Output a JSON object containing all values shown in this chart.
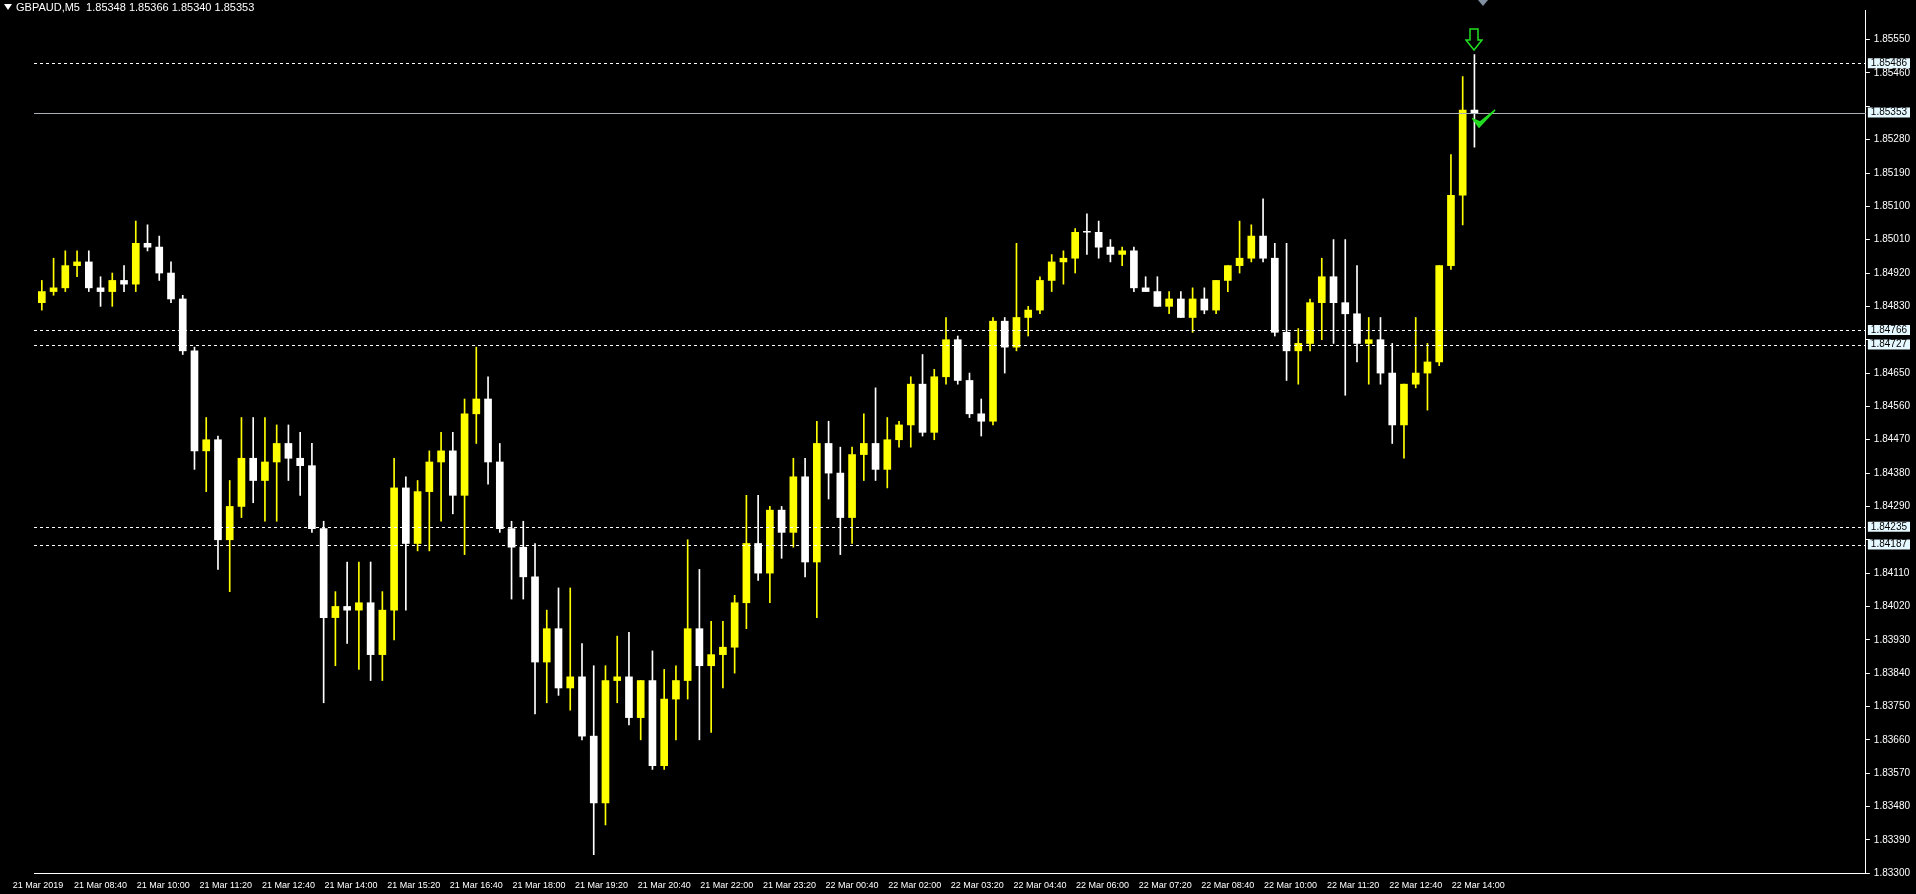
{
  "chart_data": {
    "type": "candlestick",
    "title": "GBPAUD,M5  1.85348 1.85366 1.85340 1.85353",
    "x": [
      "2019-03-21T07:25",
      "2019-03-21T07:40",
      "2019-03-21T07:55",
      "2019-03-21T08:10",
      "2019-03-21T08:25",
      "2019-03-21T08:40",
      "2019-03-21T08:55",
      "2019-03-21T09:10",
      "2019-03-21T09:25",
      "2019-03-21T09:40",
      "2019-03-21T09:55",
      "2019-03-21T10:10",
      "2019-03-21T10:25",
      "2019-03-21T10:40",
      "2019-03-21T10:55",
      "2019-03-21T11:10",
      "2019-03-21T11:25",
      "2019-03-21T11:40",
      "2019-03-21T11:55",
      "2019-03-21T12:10",
      "2019-03-21T12:25",
      "2019-03-21T12:40",
      "2019-03-21T12:55",
      "2019-03-21T13:10",
      "2019-03-21T13:25",
      "2019-03-21T13:40",
      "2019-03-21T13:55",
      "2019-03-21T14:10",
      "2019-03-21T14:25",
      "2019-03-21T14:40",
      "2019-03-21T14:55",
      "2019-03-21T15:10",
      "2019-03-21T15:25",
      "2019-03-21T15:40",
      "2019-03-21T15:55",
      "2019-03-21T16:10",
      "2019-03-21T16:25",
      "2019-03-21T16:40",
      "2019-03-21T16:55",
      "2019-03-21T17:10",
      "2019-03-21T17:25",
      "2019-03-21T17:40",
      "2019-03-21T17:55",
      "2019-03-21T18:10",
      "2019-03-21T18:25",
      "2019-03-21T18:40",
      "2019-03-21T18:55",
      "2019-03-21T19:10",
      "2019-03-21T19:25",
      "2019-03-21T19:40",
      "2019-03-21T19:55",
      "2019-03-21T20:10",
      "2019-03-21T20:25",
      "2019-03-21T20:40",
      "2019-03-21T20:55",
      "2019-03-21T21:10",
      "2019-03-21T21:25",
      "2019-03-21T21:40",
      "2019-03-21T21:55",
      "2019-03-21T22:10",
      "2019-03-21T22:25",
      "2019-03-21T22:40",
      "2019-03-21T22:55",
      "2019-03-21T23:10",
      "2019-03-21T23:25",
      "2019-03-21T23:40",
      "2019-03-21T23:55",
      "2019-03-22T00:10",
      "2019-03-22T00:25",
      "2019-03-22T00:40",
      "2019-03-22T00:55",
      "2019-03-22T01:10",
      "2019-03-22T01:25",
      "2019-03-22T01:40",
      "2019-03-22T01:55",
      "2019-03-22T02:10",
      "2019-03-22T02:25",
      "2019-03-22T02:40",
      "2019-03-22T02:55",
      "2019-03-22T03:10",
      "2019-03-22T03:25",
      "2019-03-22T03:40",
      "2019-03-22T03:55",
      "2019-03-22T04:10",
      "2019-03-22T04:25",
      "2019-03-22T04:40",
      "2019-03-22T04:55",
      "2019-03-22T05:10",
      "2019-03-22T05:25",
      "2019-03-22T05:40",
      "2019-03-22T05:55",
      "2019-03-22T06:10",
      "2019-03-22T06:25",
      "2019-03-22T06:40",
      "2019-03-22T06:55",
      "2019-03-22T07:10",
      "2019-03-22T07:25",
      "2019-03-22T07:40",
      "2019-03-22T07:55",
      "2019-03-22T08:10",
      "2019-03-22T08:25",
      "2019-03-22T08:40",
      "2019-03-22T08:55",
      "2019-03-22T09:10",
      "2019-03-22T09:25",
      "2019-03-22T09:40",
      "2019-03-22T09:55",
      "2019-03-22T10:10",
      "2019-03-22T10:25",
      "2019-03-22T10:40",
      "2019-03-22T10:55",
      "2019-03-22T11:10",
      "2019-03-22T11:25",
      "2019-03-22T11:40",
      "2019-03-22T11:55",
      "2019-03-22T12:10",
      "2019-03-22T12:25",
      "2019-03-22T12:40",
      "2019-03-22T12:55",
      "2019-03-22T13:10",
      "2019-03-22T13:25",
      "2019-03-22T13:40",
      "2019-03-22T13:55"
    ],
    "ohlc": [
      [
        1.8484,
        1.849,
        1.8482,
        1.8487
      ],
      [
        1.8487,
        1.8496,
        1.8486,
        1.8488
      ],
      [
        1.8488,
        1.8498,
        1.8487,
        1.8494
      ],
      [
        1.8494,
        1.8498,
        1.8491,
        1.8495
      ],
      [
        1.8495,
        1.8498,
        1.8487,
        1.8488
      ],
      [
        1.8488,
        1.8491,
        1.8483,
        1.8487
      ],
      [
        1.8487,
        1.8492,
        1.8483,
        1.849
      ],
      [
        1.849,
        1.8494,
        1.8487,
        1.8489
      ],
      [
        1.8489,
        1.8506,
        1.8487,
        1.85
      ],
      [
        1.85,
        1.8505,
        1.8498,
        1.8499
      ],
      [
        1.8499,
        1.8502,
        1.849,
        1.8492
      ],
      [
        1.8492,
        1.8495,
        1.8484,
        1.8485
      ],
      [
        1.8485,
        1.8486,
        1.847,
        1.8471
      ],
      [
        1.8471,
        1.8472,
        1.8439,
        1.8444
      ],
      [
        1.8444,
        1.8453,
        1.8433,
        1.8447
      ],
      [
        1.8447,
        1.8448,
        1.8412,
        1.842
      ],
      [
        1.842,
        1.8436,
        1.8406,
        1.8429
      ],
      [
        1.8429,
        1.8453,
        1.8426,
        1.8442
      ],
      [
        1.8442,
        1.8453,
        1.843,
        1.8436
      ],
      [
        1.8436,
        1.8453,
        1.8425,
        1.8441
      ],
      [
        1.8441,
        1.8451,
        1.8425,
        1.8446
      ],
      [
        1.8446,
        1.8451,
        1.8436,
        1.8442
      ],
      [
        1.8442,
        1.8449,
        1.8432,
        1.844
      ],
      [
        1.844,
        1.8446,
        1.8422,
        1.8423
      ],
      [
        1.8423,
        1.8425,
        1.8376,
        1.8399
      ],
      [
        1.8399,
        1.8406,
        1.8386,
        1.8402
      ],
      [
        1.8402,
        1.8414,
        1.8392,
        1.8401
      ],
      [
        1.8401,
        1.8414,
        1.8385,
        1.8403
      ],
      [
        1.8403,
        1.8414,
        1.8382,
        1.8389
      ],
      [
        1.8389,
        1.8406,
        1.8382,
        1.8401
      ],
      [
        1.8401,
        1.8442,
        1.8393,
        1.8434
      ],
      [
        1.8434,
        1.8437,
        1.8401,
        1.8419
      ],
      [
        1.8419,
        1.8436,
        1.8417,
        1.8433
      ],
      [
        1.8433,
        1.8444,
        1.8417,
        1.8441
      ],
      [
        1.8441,
        1.8449,
        1.8425,
        1.8444
      ],
      [
        1.8444,
        1.8449,
        1.8427,
        1.8432
      ],
      [
        1.8432,
        1.8458,
        1.8416,
        1.8454
      ],
      [
        1.8454,
        1.8472,
        1.8446,
        1.8458
      ],
      [
        1.8458,
        1.8464,
        1.8435,
        1.8441
      ],
      [
        1.8441,
        1.8446,
        1.8422,
        1.8423
      ],
      [
        1.8423,
        1.8425,
        1.8404,
        1.8418
      ],
      [
        1.8418,
        1.8425,
        1.8404,
        1.841
      ],
      [
        1.841,
        1.8419,
        1.8373,
        1.8387
      ],
      [
        1.8387,
        1.8401,
        1.8376,
        1.8396
      ],
      [
        1.8396,
        1.8407,
        1.8378,
        1.838
      ],
      [
        1.838,
        1.8407,
        1.8374,
        1.8383
      ],
      [
        1.8383,
        1.8392,
        1.8366,
        1.8367
      ],
      [
        1.8367,
        1.8386,
        1.8335,
        1.8349
      ],
      [
        1.8349,
        1.8386,
        1.8343,
        1.8382
      ],
      [
        1.8382,
        1.8394,
        1.8376,
        1.8383
      ],
      [
        1.8383,
        1.8395,
        1.837,
        1.8372
      ],
      [
        1.8372,
        1.8382,
        1.8366,
        1.8382
      ],
      [
        1.8382,
        1.839,
        1.8358,
        1.8359
      ],
      [
        1.8359,
        1.8385,
        1.8358,
        1.8377
      ],
      [
        1.8377,
        1.8386,
        1.8366,
        1.8382
      ],
      [
        1.8382,
        1.842,
        1.8377,
        1.8396
      ],
      [
        1.8396,
        1.8412,
        1.8366,
        1.8386
      ],
      [
        1.8386,
        1.8398,
        1.8368,
        1.8389
      ],
      [
        1.8389,
        1.8398,
        1.838,
        1.8391
      ],
      [
        1.8391,
        1.8405,
        1.8384,
        1.8403
      ],
      [
        1.8403,
        1.8432,
        1.8396,
        1.8419
      ],
      [
        1.8419,
        1.8432,
        1.8409,
        1.8411
      ],
      [
        1.8411,
        1.8429,
        1.8403,
        1.8428
      ],
      [
        1.8428,
        1.8429,
        1.8415,
        1.8422
      ],
      [
        1.8422,
        1.8442,
        1.8418,
        1.8437
      ],
      [
        1.8437,
        1.8442,
        1.841,
        1.8414
      ],
      [
        1.8414,
        1.8452,
        1.8399,
        1.8446
      ],
      [
        1.8446,
        1.8452,
        1.8431,
        1.8438
      ],
      [
        1.8438,
        1.8445,
        1.8416,
        1.8426
      ],
      [
        1.8426,
        1.8445,
        1.8419,
        1.8443
      ],
      [
        1.8443,
        1.8454,
        1.8436,
        1.8446
      ],
      [
        1.8446,
        1.8461,
        1.8436,
        1.8439
      ],
      [
        1.8439,
        1.8453,
        1.8434,
        1.8447
      ],
      [
        1.8447,
        1.8452,
        1.8445,
        1.8451
      ],
      [
        1.8451,
        1.8464,
        1.8445,
        1.8462
      ],
      [
        1.8462,
        1.847,
        1.8448,
        1.8449
      ],
      [
        1.8449,
        1.8466,
        1.8447,
        1.8464
      ],
      [
        1.8464,
        1.848,
        1.8462,
        1.8474
      ],
      [
        1.8474,
        1.8475,
        1.8462,
        1.8463
      ],
      [
        1.8463,
        1.8465,
        1.8453,
        1.8454
      ],
      [
        1.8454,
        1.8458,
        1.8448,
        1.8452
      ],
      [
        1.8452,
        1.848,
        1.8451,
        1.8479
      ],
      [
        1.8479,
        1.848,
        1.8465,
        1.8472
      ],
      [
        1.8472,
        1.85,
        1.8471,
        1.848
      ],
      [
        1.848,
        1.8483,
        1.8475,
        1.8482
      ],
      [
        1.8482,
        1.8491,
        1.8481,
        1.849
      ],
      [
        1.849,
        1.8497,
        1.8487,
        1.8495
      ],
      [
        1.8495,
        1.8498,
        1.8489,
        1.8496
      ],
      [
        1.8496,
        1.8504,
        1.8492,
        1.8503
      ],
      [
        1.8503,
        1.8508,
        1.8497,
        1.8503
      ],
      [
        1.8503,
        1.8506,
        1.8496,
        1.8499
      ],
      [
        1.8499,
        1.8501,
        1.8495,
        1.8497
      ],
      [
        1.8497,
        1.8499,
        1.8494,
        1.8498
      ],
      [
        1.8498,
        1.8499,
        1.8487,
        1.8488
      ],
      [
        1.8488,
        1.8491,
        1.8487,
        1.8487
      ],
      [
        1.8487,
        1.8491,
        1.8483,
        1.8483
      ],
      [
        1.8483,
        1.8487,
        1.8481,
        1.8485
      ],
      [
        1.8485,
        1.8487,
        1.848,
        1.848
      ],
      [
        1.848,
        1.8488,
        1.8476,
        1.8485
      ],
      [
        1.8485,
        1.8488,
        1.8481,
        1.8482
      ],
      [
        1.8482,
        1.849,
        1.8481,
        1.849
      ],
      [
        1.849,
        1.8494,
        1.8487,
        1.8494
      ],
      [
        1.8494,
        1.8506,
        1.8492,
        1.8496
      ],
      [
        1.8496,
        1.8505,
        1.8495,
        1.8502
      ],
      [
        1.8502,
        1.8512,
        1.8495,
        1.8496
      ],
      [
        1.8496,
        1.85,
        1.8475,
        1.8476
      ],
      [
        1.8476,
        1.85,
        1.8463,
        1.8471
      ],
      [
        1.8471,
        1.8477,
        1.8462,
        1.8473
      ],
      [
        1.8473,
        1.8485,
        1.8471,
        1.8484
      ],
      [
        1.8484,
        1.8496,
        1.8474,
        1.8491
      ],
      [
        1.8491,
        1.8501,
        1.8473,
        1.8484
      ],
      [
        1.8484,
        1.8501,
        1.8459,
        1.8481
      ],
      [
        1.8481,
        1.8494,
        1.8468,
        1.8473
      ],
      [
        1.8473,
        1.848,
        1.8462,
        1.8474
      ],
      [
        1.8474,
        1.848,
        1.8462,
        1.8465
      ],
      [
        1.8465,
        1.8473,
        1.8446,
        1.8451
      ],
      [
        1.8451,
        1.8462,
        1.8442,
        1.8462
      ],
      [
        1.8462,
        1.848,
        1.8461,
        1.8465
      ],
      [
        1.8465,
        1.8473,
        1.8455,
        1.8468
      ],
      [
        1.8468,
        1.8494,
        1.8467,
        1.8494
      ],
      [
        1.8494,
        1.8524,
        1.8493,
        1.8513
      ],
      [
        1.8513,
        1.8545,
        1.8505,
        1.8536
      ],
      [
        1.8536,
        1.8551,
        1.8526,
        1.8535
      ]
    ],
    "colors": [
      "#ffff00",
      "#ffff00",
      "#ffff00",
      "#ffff00",
      "#ffffff",
      "#ffffff",
      "#ffff00",
      "#ffffff",
      "#ffff00",
      "#ffffff",
      "#ffffff",
      "#ffffff",
      "#ffffff",
      "#ffffff",
      "#ffff00",
      "#ffffff",
      "#ffff00",
      "#ffff00",
      "#ffffff",
      "#ffff00",
      "#ffff00",
      "#ffffff",
      "#ffffff",
      "#ffffff",
      "#ffffff",
      "#ffff00",
      "#ffffff",
      "#ffff00",
      "#ffffff",
      "#ffff00",
      "#ffff00",
      "#ffffff",
      "#ffff00",
      "#ffff00",
      "#ffff00",
      "#ffffff",
      "#ffff00",
      "#ffff00",
      "#ffffff",
      "#ffffff",
      "#ffffff",
      "#ffffff",
      "#ffffff",
      "#ffff00",
      "#ffffff",
      "#ffff00",
      "#ffffff",
      "#ffffff",
      "#ffff00",
      "#ffff00",
      "#ffffff",
      "#ffff00",
      "#ffffff",
      "#ffff00",
      "#ffff00",
      "#ffff00",
      "#ffffff",
      "#ffff00",
      "#ffff00",
      "#ffff00",
      "#ffff00",
      "#ffffff",
      "#ffff00",
      "#ffffff",
      "#ffff00",
      "#ffffff",
      "#ffff00",
      "#ffffff",
      "#ffffff",
      "#ffff00",
      "#ffff00",
      "#ffffff",
      "#ffff00",
      "#ffff00",
      "#ffff00",
      "#ffffff",
      "#ffff00",
      "#ffff00",
      "#ffffff",
      "#ffffff",
      "#ffffff",
      "#ffff00",
      "#ffffff",
      "#ffff00",
      "#ffff00",
      "#ffff00",
      "#ffff00",
      "#ffff00",
      "#ffff00",
      "#ffffff",
      "#ffffff",
      "#ffffff",
      "#ffff00",
      "#ffffff",
      "#ffffff",
      "#ffffff",
      "#ffff00",
      "#ffffff",
      "#ffff00",
      "#ffffff",
      "#ffff00",
      "#ffff00",
      "#ffff00",
      "#ffff00",
      "#ffffff",
      "#ffffff",
      "#ffffff",
      "#ffff00",
      "#ffff00",
      "#ffff00",
      "#ffffff",
      "#ffffff",
      "#ffffff",
      "#ffff00",
      "#ffffff",
      "#ffffff",
      "#ffff00",
      "#ffff00",
      "#ffff00",
      "#ffff00",
      "#ffff00",
      "#ffff00",
      "#ffffff"
    ],
    "xlim": [
      "2019-03-21T07:15",
      "2019-03-22T22:15"
    ],
    "xticks": [
      {
        "value": "2019-03-21T07:20",
        "label": "21 Mar 2019"
      },
      {
        "value": "2019-03-21T08:40",
        "label": "21 Mar 08:40"
      },
      {
        "value": "2019-03-21T10:00",
        "label": "21 Mar 10:00"
      },
      {
        "value": "2019-03-21T11:20",
        "label": "21 Mar 11:20"
      },
      {
        "value": "2019-03-21T12:40",
        "label": "21 Mar 12:40"
      },
      {
        "value": "2019-03-21T14:00",
        "label": "21 Mar 14:00"
      },
      {
        "value": "2019-03-21T15:20",
        "label": "21 Mar 15:20"
      },
      {
        "value": "2019-03-21T16:40",
        "label": "21 Mar 16:40"
      },
      {
        "value": "2019-03-21T18:00",
        "label": "21 Mar 18:00"
      },
      {
        "value": "2019-03-21T19:20",
        "label": "21 Mar 19:20"
      },
      {
        "value": "2019-03-21T20:40",
        "label": "21 Mar 20:40"
      },
      {
        "value": "2019-03-21T22:00",
        "label": "21 Mar 22:00"
      },
      {
        "value": "2019-03-21T23:20",
        "label": "21 Mar 23:20"
      },
      {
        "value": "2019-03-22T00:40",
        "label": "22 Mar 00:40"
      },
      {
        "value": "2019-03-22T02:00",
        "label": "22 Mar 02:00"
      },
      {
        "value": "2019-03-22T03:20",
        "label": "22 Mar 03:20"
      },
      {
        "value": "2019-03-22T04:40",
        "label": "22 Mar 04:40"
      },
      {
        "value": "2019-03-22T06:00",
        "label": "22 Mar 06:00"
      },
      {
        "value": "2019-03-22T07:20",
        "label": "22 Mar 07:20"
      },
      {
        "value": "2019-03-22T08:40",
        "label": "22 Mar 08:40"
      },
      {
        "value": "2019-03-22T10:00",
        "label": "22 Mar 10:00"
      },
      {
        "value": "2019-03-22T11:20",
        "label": "22 Mar 11:20"
      },
      {
        "value": "2019-03-22T12:40",
        "label": "22 Mar 12:40"
      },
      {
        "value": "2019-03-22T14:00",
        "label": "22 Mar 14:00"
      }
    ],
    "ylim": [
      1.833,
      1.8563
    ],
    "yticks": [
      {
        "value": 1.8555,
        "label": "1.85550"
      },
      {
        "value": 1.8546,
        "label": "1.85460"
      },
      {
        "value": 1.8537,
        "label": null
      },
      {
        "value": 1.8528,
        "label": "1.85280"
      },
      {
        "value": 1.8519,
        "label": "1.85190"
      },
      {
        "value": 1.851,
        "label": "1.85100"
      },
      {
        "value": 1.8501,
        "label": "1.85010"
      },
      {
        "value": 1.8492,
        "label": "1.84920"
      },
      {
        "value": 1.8483,
        "label": "1.84830"
      },
      {
        "value": 1.8474,
        "label": null
      },
      {
        "value": 1.8465,
        "label": "1.84650"
      },
      {
        "value": 1.8456,
        "label": "1.84560"
      },
      {
        "value": 1.8447,
        "label": "1.84470"
      },
      {
        "value": 1.8438,
        "label": "1.84380"
      },
      {
        "value": 1.8429,
        "label": "1.84290"
      },
      {
        "value": 1.842,
        "label": null
      },
      {
        "value": 1.8411,
        "label": "1.84110"
      },
      {
        "value": 1.8402,
        "label": "1.84020"
      },
      {
        "value": 1.8393,
        "label": "1.83930"
      },
      {
        "value": 1.8384,
        "label": "1.83840"
      },
      {
        "value": 1.8375,
        "label": "1.83750"
      },
      {
        "value": 1.8366,
        "label": "1.83660"
      },
      {
        "value": 1.8357,
        "label": "1.83570"
      },
      {
        "value": 1.8348,
        "label": "1.83480"
      },
      {
        "value": 1.8339,
        "label": "1.83390"
      },
      {
        "value": 1.833,
        "label": "1.83300"
      }
    ],
    "ref_lines": [
      {
        "axis": "y",
        "value": 1.85486,
        "label": "1.85486",
        "color": "#ffffff",
        "line_style": "dashed"
      },
      {
        "axis": "y",
        "value": 1.85353,
        "label": "1.85353",
        "color": "#a8b0b8",
        "line_style": "solid"
      },
      {
        "axis": "y",
        "value": 1.84766,
        "label": "1.84766",
        "color": "#ffffff",
        "line_style": "dashed"
      },
      {
        "axis": "y",
        "value": 1.84727,
        "label": "1.84727",
        "color": "#ffffff",
        "line_style": "dashed"
      },
      {
        "axis": "y",
        "value": 1.84235,
        "label": "1.84235",
        "color": "#ffffff",
        "line_style": "dashed"
      },
      {
        "axis": "y",
        "value": 1.84187,
        "label": "1.84187",
        "color": "#ffffff",
        "line_style": "dashed"
      }
    ]
  }
}
